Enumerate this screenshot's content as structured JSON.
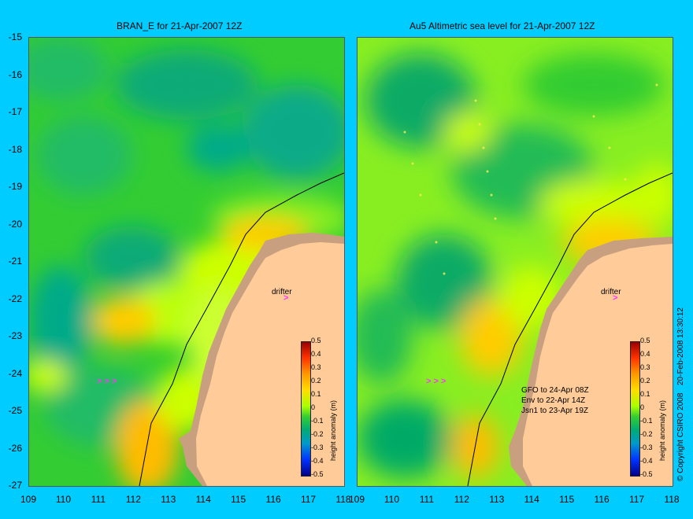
{
  "titles": {
    "left": "BRAN_E for 21-Apr-2007 12Z",
    "right": "Au5 Altimetric sea level  for 21-Apr-2007 12Z"
  },
  "axes": {
    "y_ticks": [
      "-15",
      "-16",
      "-17",
      "-18",
      "-19",
      "-20",
      "-21",
      "-22",
      "-23",
      "-24",
      "-25",
      "-26",
      "-27"
    ],
    "x_ticks": [
      "109",
      "110",
      "111",
      "112",
      "113",
      "114",
      "115",
      "116",
      "117",
      "118"
    ]
  },
  "labels": {
    "drifter": "drifter"
  },
  "colorbar": {
    "ticks": [
      "0.5",
      "0.4",
      "0.3",
      "0.2",
      "0.1",
      "0",
      "-0.1",
      "-0.2",
      "-0.3",
      "-0.4",
      "-0.5"
    ],
    "unit": "height anomaly (m)"
  },
  "altimetry_info": {
    "gfo": "GFO to 24-Apr 08Z",
    "env": "Env to 22-Apr 14Z",
    "jsn": "Jsn1 to 23-Apr 19Z"
  },
  "side_text": {
    "date": "20-Feb-2008 13:30:12",
    "copyright": "© Copyright CSIRO 2008"
  },
  "colors": {
    "background": "#00ccff",
    "land": "#ffcc99",
    "drifter_arrow": "#ff33ff"
  }
}
